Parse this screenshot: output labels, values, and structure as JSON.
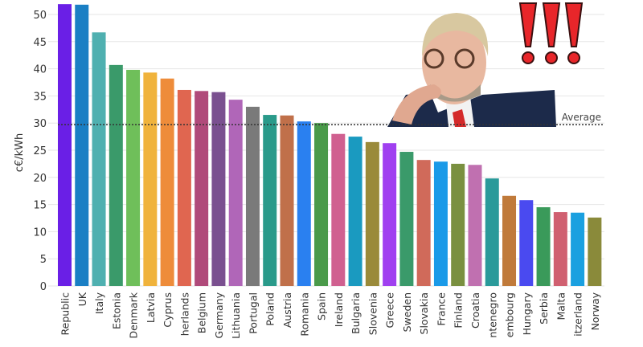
{
  "chart_data": {
    "type": "bar",
    "title": "",
    "xlabel": "",
    "ylabel": "c€/kWh",
    "ylim": [
      0,
      52
    ],
    "yticks": [
      "0",
      "5",
      "10",
      "15",
      "20",
      "25",
      "30",
      "35",
      "40",
      "45",
      "50"
    ],
    "grid": true,
    "categories": [
      "Republic",
      "UK",
      "Italy",
      "Estonia",
      "Denmark",
      "Latvia",
      "Cyprus",
      "herlands",
      "Belgium",
      "Germany",
      "Lithuania",
      "Portugal",
      "Poland",
      "Austria",
      "Romania",
      "Spain",
      "Ireland",
      "Bulgaria",
      "Slovenia",
      "Greece",
      "Sweden",
      "Slovakia",
      "France",
      "Finland",
      "Croatia",
      "ntenegro",
      "embourg",
      "Hungary",
      "Serbia",
      "Malta",
      "itzerland",
      "Norway"
    ],
    "values": [
      51.9,
      51.8,
      46.7,
      40.7,
      39.8,
      39.3,
      38.2,
      36.1,
      35.9,
      35.7,
      34.3,
      33.0,
      31.5,
      31.4,
      30.3,
      30.0,
      28.0,
      27.5,
      26.5,
      26.3,
      24.7,
      23.2,
      22.9,
      22.5,
      22.3,
      19.8,
      16.6,
      15.8,
      14.5,
      13.6,
      13.5,
      12.6
    ],
    "colors": [
      "#6a1fe6",
      "#1a7fc4",
      "#4fb0b0",
      "#3a9a6a",
      "#6fbf5a",
      "#f0b33c",
      "#ee8c3a",
      "#e06650",
      "#b04a7a",
      "#7a5090",
      "#b066b8",
      "#7a7a7a",
      "#2a9a8a",
      "#c0704a",
      "#2a80f0",
      "#4a9a4a",
      "#d06090",
      "#1a9ac0",
      "#9a8a3a",
      "#a040f0",
      "#3a9a6a",
      "#d06a5a",
      "#1a9ae8",
      "#7a9040",
      "#c070b0",
      "#2a9a9a",
      "#c07a3a",
      "#4a4af0",
      "#3a9a5a",
      "#d06070",
      "#1aa0e0",
      "#8a8a3a"
    ],
    "reference_line": {
      "label": "Average",
      "value": 29.7
    }
  },
  "overlay": {
    "exclamation": "!!!",
    "accent": "#e8262a"
  }
}
